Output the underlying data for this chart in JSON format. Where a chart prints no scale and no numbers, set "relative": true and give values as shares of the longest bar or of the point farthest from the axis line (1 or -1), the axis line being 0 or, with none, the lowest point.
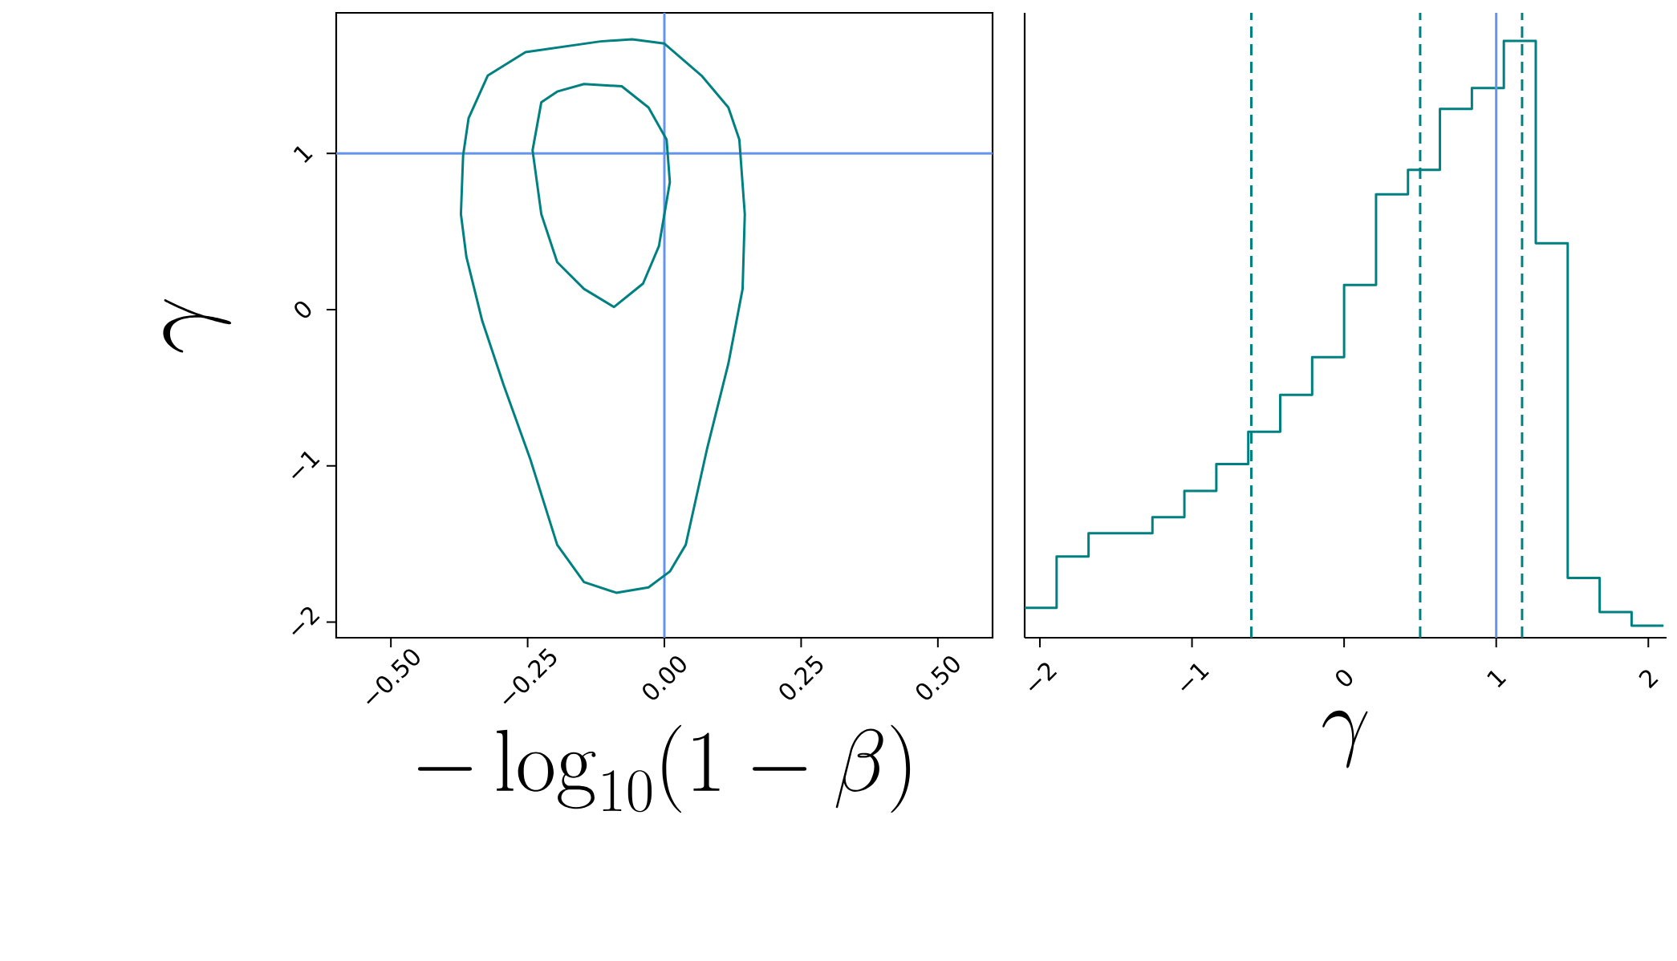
{
  "chart_data": [
    {
      "type": "line",
      "xlabel": "-\\log_{10}(1-\\beta)",
      "ylabel": "\\gamma",
      "xlim": [
        -0.6,
        0.6
      ],
      "ylim": [
        -2.1,
        1.9
      ],
      "xticks": [
        {
          "value": -0.5,
          "label": "−0.50"
        },
        {
          "value": -0.25,
          "label": "−0.25"
        },
        {
          "value": 0,
          "label": "0.00"
        },
        {
          "value": 0.25,
          "label": "0.25"
        },
        {
          "value": 0.5,
          "label": "0.50"
        }
      ],
      "yticks": [
        {
          "value": -2,
          "label": "−2"
        },
        {
          "value": -1,
          "label": "−1"
        },
        {
          "value": 0,
          "label": "0"
        },
        {
          "value": 1,
          "label": "1"
        }
      ],
      "ref_lines": [
        {
          "axis": "x",
          "value": 0,
          "color": "#6495ed"
        },
        {
          "axis": "y",
          "value": 1,
          "color": "#6495ed"
        }
      ]
    },
    {
      "type": "step",
      "xlabel": "\\gamma",
      "relative": true,
      "tick_labels": "x",
      "color": "#008080",
      "xlim": [
        -2.1,
        2.12
      ],
      "xticks": [
        {
          "value": -2,
          "label": "−2"
        },
        {
          "value": -1,
          "label": "−1"
        },
        {
          "value": 0,
          "label": "0"
        },
        {
          "value": 1,
          "label": "1"
        },
        {
          "value": 2,
          "label": "2"
        }
      ],
      "x": [
        -2.1,
        -1.89,
        -1.68,
        -1.47,
        -1.26,
        -1.05,
        -0.84,
        -0.63,
        -0.42,
        -0.21,
        0,
        0.21,
        0.42,
        0.63,
        0.84,
        1.05,
        1.26,
        1.47,
        1.68,
        1.89,
        2.1
      ],
      "values": [
        0.05,
        0.136,
        0.175,
        0.175,
        0.202,
        0.246,
        0.291,
        0.345,
        0.407,
        0.47,
        0.591,
        0.743,
        0.784,
        0.886,
        0.921,
        1,
        0.661,
        0.1,
        0.043,
        0.02,
        0.02
      ],
      "ref_lines": [
        {
          "axis": "x",
          "value": -0.61,
          "color": "#008080",
          "line_style": "dashed"
        },
        {
          "axis": "x",
          "value": 0.5,
          "color": "#008080",
          "line_style": "dashed"
        },
        {
          "axis": "x",
          "value": 1.17,
          "color": "#008080",
          "line_style": "dashed"
        },
        {
          "axis": "x",
          "value": 1.0,
          "color": "#6495ed"
        }
      ]
    }
  ]
}
